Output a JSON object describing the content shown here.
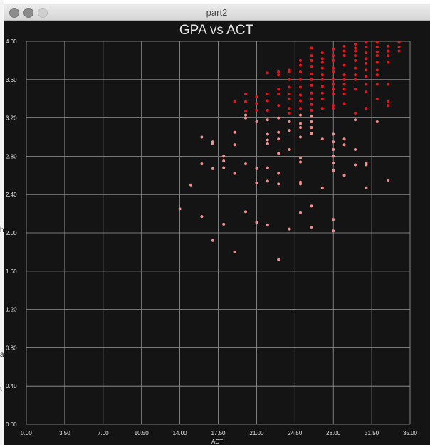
{
  "window": {
    "title": "part2"
  },
  "colors": {
    "background": "#141414",
    "grid": "#9a9a9a",
    "text": "#e6e6e6",
    "points_high": "#e8141e",
    "points_low": "#ef9090"
  },
  "chart_data": {
    "type": "scatter",
    "title": "GPA vs ACT",
    "xlabel": "ACT",
    "ylabel": "",
    "xlim": [
      0,
      35
    ],
    "ylim": [
      0,
      4
    ],
    "grid": true,
    "x_ticks": [
      "0.00",
      "3.50",
      "7.00",
      "10.50",
      "14.00",
      "17.50",
      "21.00",
      "24.50",
      "28.00",
      "31.50",
      "35.00"
    ],
    "y_ticks": [
      "0.00",
      "0.40",
      "0.80",
      "1.20",
      "1.60",
      "2.00",
      "2.40",
      "2.80",
      "3.20",
      "3.60",
      "4.00"
    ],
    "color_rule": "points with GPA >= 3.25 are drawn in the bright red color, others in light red",
    "points": [
      [
        14,
        2.25
      ],
      [
        15,
        2.5
      ],
      [
        16,
        3.0
      ],
      [
        16,
        2.72
      ],
      [
        16,
        2.17
      ],
      [
        17,
        2.95
      ],
      [
        17,
        2.93
      ],
      [
        17,
        2.67
      ],
      [
        17,
        1.92
      ],
      [
        18,
        2.8
      ],
      [
        18,
        2.75
      ],
      [
        18,
        2.68
      ],
      [
        18,
        2.09
      ],
      [
        19,
        3.37
      ],
      [
        19,
        3.05
      ],
      [
        19,
        2.92
      ],
      [
        19,
        2.62
      ],
      [
        19,
        1.8
      ],
      [
        20,
        3.45
      ],
      [
        20,
        3.37
      ],
      [
        20,
        3.27
      ],
      [
        20,
        3.23
      ],
      [
        20,
        3.2
      ],
      [
        20,
        2.72
      ],
      [
        20,
        2.22
      ],
      [
        21,
        3.42
      ],
      [
        21,
        3.35
      ],
      [
        21,
        3.28
      ],
      [
        21,
        3.16
      ],
      [
        21,
        2.67
      ],
      [
        21,
        2.52
      ],
      [
        21,
        2.11
      ],
      [
        22,
        3.67
      ],
      [
        22,
        3.45
      ],
      [
        22,
        3.38
      ],
      [
        22,
        3.28
      ],
      [
        22,
        3.18
      ],
      [
        22,
        3.03
      ],
      [
        22,
        2.97
      ],
      [
        22,
        2.93
      ],
      [
        22,
        2.68
      ],
      [
        22,
        2.54
      ],
      [
        22,
        2.08
      ],
      [
        23,
        3.68
      ],
      [
        23,
        3.65
      ],
      [
        23,
        3.5
      ],
      [
        23,
        3.45
      ],
      [
        23,
        3.33
      ],
      [
        23,
        3.2
      ],
      [
        23,
        3.05
      ],
      [
        23,
        2.98
      ],
      [
        23,
        2.83
      ],
      [
        23,
        2.62
      ],
      [
        23,
        2.51
      ],
      [
        23,
        1.72
      ],
      [
        24,
        3.7
      ],
      [
        24,
        3.68
      ],
      [
        24,
        3.6
      ],
      [
        24,
        3.52
      ],
      [
        24,
        3.45
      ],
      [
        24,
        3.4
      ],
      [
        24,
        3.3
      ],
      [
        24,
        3.25
      ],
      [
        24,
        3.16
      ],
      [
        24,
        3.07
      ],
      [
        24,
        2.87
      ],
      [
        24,
        2.04
      ],
      [
        25,
        3.8
      ],
      [
        25,
        3.75
      ],
      [
        25,
        3.68
      ],
      [
        25,
        3.6
      ],
      [
        25,
        3.52
      ],
      [
        25,
        3.44
      ],
      [
        25,
        3.38
      ],
      [
        25,
        3.3
      ],
      [
        25,
        3.23
      ],
      [
        25,
        3.14
      ],
      [
        25,
        3.1
      ],
      [
        25,
        3.0
      ],
      [
        25,
        2.78
      ],
      [
        25,
        2.74
      ],
      [
        25,
        2.53
      ],
      [
        25,
        2.51
      ],
      [
        25,
        2.21
      ],
      [
        26,
        3.93
      ],
      [
        26,
        3.85
      ],
      [
        26,
        3.8
      ],
      [
        26,
        3.74
      ],
      [
        26,
        3.66
      ],
      [
        26,
        3.6
      ],
      [
        26,
        3.54
      ],
      [
        26,
        3.46
      ],
      [
        26,
        3.4
      ],
      [
        26,
        3.34
      ],
      [
        26,
        3.28
      ],
      [
        26,
        3.22
      ],
      [
        26,
        3.16
      ],
      [
        26,
        3.1
      ],
      [
        26,
        3.04
      ],
      [
        26,
        2.28
      ],
      [
        26,
        2.06
      ],
      [
        27,
        3.88
      ],
      [
        27,
        3.82
      ],
      [
        27,
        3.78
      ],
      [
        27,
        3.72
      ],
      [
        27,
        3.65
      ],
      [
        27,
        3.6
      ],
      [
        27,
        3.53
      ],
      [
        27,
        3.46
      ],
      [
        27,
        3.4
      ],
      [
        27,
        3.3
      ],
      [
        27,
        2.98
      ],
      [
        27,
        2.47
      ],
      [
        28,
        3.92
      ],
      [
        28,
        3.85
      ],
      [
        28,
        3.8
      ],
      [
        28,
        3.72
      ],
      [
        28,
        3.68
      ],
      [
        28,
        3.6
      ],
      [
        28,
        3.55
      ],
      [
        28,
        3.5
      ],
      [
        28,
        3.45
      ],
      [
        28,
        3.33
      ],
      [
        28,
        3.3
      ],
      [
        28,
        3.03
      ],
      [
        28,
        2.95
      ],
      [
        28,
        2.87
      ],
      [
        28,
        2.8
      ],
      [
        28,
        2.73
      ],
      [
        28,
        2.65
      ],
      [
        28,
        2.14
      ],
      [
        28,
        2.02
      ],
      [
        29,
        3.95
      ],
      [
        29,
        3.9
      ],
      [
        29,
        3.85
      ],
      [
        29,
        3.75
      ],
      [
        29,
        3.65
      ],
      [
        29,
        3.6
      ],
      [
        29,
        3.55
      ],
      [
        29,
        3.5
      ],
      [
        29,
        3.45
      ],
      [
        29,
        3.35
      ],
      [
        29,
        2.98
      ],
      [
        29,
        2.92
      ],
      [
        29,
        2.6
      ],
      [
        30,
        3.97
      ],
      [
        30,
        3.93
      ],
      [
        30,
        3.9
      ],
      [
        30,
        3.85
      ],
      [
        30,
        3.8
      ],
      [
        30,
        3.72
      ],
      [
        30,
        3.65
      ],
      [
        30,
        3.6
      ],
      [
        30,
        3.5
      ],
      [
        30,
        3.25
      ],
      [
        30,
        3.18
      ],
      [
        30,
        2.87
      ],
      [
        30,
        2.71
      ],
      [
        31,
        3.99
      ],
      [
        31,
        3.94
      ],
      [
        31,
        3.88
      ],
      [
        31,
        3.82
      ],
      [
        31,
        3.77
      ],
      [
        31,
        3.7
      ],
      [
        31,
        3.63
      ],
      [
        31,
        3.55
      ],
      [
        31,
        3.47
      ],
      [
        31,
        3.3
      ],
      [
        31,
        2.73
      ],
      [
        31,
        2.71
      ],
      [
        31,
        2.47
      ],
      [
        32,
        3.99
      ],
      [
        32,
        3.94
      ],
      [
        32,
        3.89
      ],
      [
        32,
        3.85
      ],
      [
        32,
        3.78
      ],
      [
        32,
        3.7
      ],
      [
        32,
        3.65
      ],
      [
        32,
        3.55
      ],
      [
        32,
        3.4
      ],
      [
        32,
        3.16
      ],
      [
        33,
        3.95
      ],
      [
        33,
        3.9
      ],
      [
        33,
        3.85
      ],
      [
        33,
        3.78
      ],
      [
        33,
        3.55
      ],
      [
        33,
        3.37
      ],
      [
        33,
        3.33
      ],
      [
        33,
        2.55
      ],
      [
        34,
        3.99
      ],
      [
        34,
        3.94
      ],
      [
        34,
        3.9
      ]
    ]
  }
}
